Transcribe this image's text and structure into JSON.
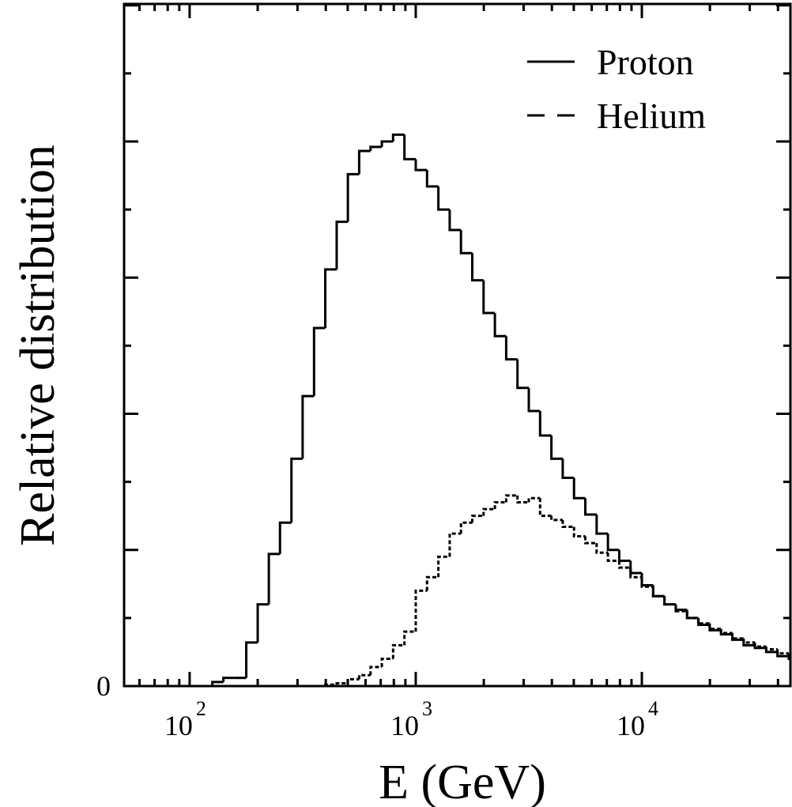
{
  "chart_data": {
    "type": "histogram",
    "x_label": "E (GeV)",
    "y_label": "Relative distribution",
    "log_x": true,
    "xlim": [
      51.3,
      45400
    ],
    "ylim": [
      0,
      5.01
    ],
    "xticks": [
      {
        "value": 100,
        "base": "10",
        "exponent": "2"
      },
      {
        "value": 1000,
        "base": "10",
        "exponent": "3"
      },
      {
        "value": 10000,
        "base": "10",
        "exponent": "4"
      }
    ],
    "xminor": [
      60,
      70,
      80,
      90,
      200,
      300,
      400,
      500,
      600,
      700,
      800,
      900,
      2000,
      3000,
      4000,
      5000,
      6000,
      7000,
      8000,
      9000,
      20000,
      30000,
      40000
    ],
    "yticks": [
      0
    ],
    "ytick_marks": [
      1,
      2,
      3,
      4,
      5
    ],
    "yminor": [
      0.5,
      1.5,
      2.5,
      3.5,
      4.5
    ],
    "legend": "upper right",
    "bins": [
      126,
      141,
      158,
      178,
      200,
      224,
      251,
      282,
      316,
      355,
      398,
      447,
      501,
      562,
      631,
      708,
      794,
      891,
      1000,
      1122,
      1259,
      1413,
      1585,
      1778,
      1995,
      2239,
      2512,
      2818,
      3162,
      3548,
      3981,
      4467,
      5012,
      5623,
      6310,
      7079,
      7943,
      8913,
      10000,
      11220,
      12589,
      14125,
      15849,
      17783,
      19953,
      22387,
      25119,
      28184,
      31623,
      35481,
      39811,
      44668,
      50119
    ],
    "series": [
      {
        "name": "Proton",
        "color": "#000000",
        "dashed": false,
        "values": [
          0.03,
          0.06,
          0.06,
          0.32,
          0.6,
          0.97,
          1.2,
          1.67,
          2.13,
          2.63,
          3.06,
          3.41,
          3.76,
          3.93,
          3.96,
          4.0,
          4.05,
          3.87,
          3.79,
          3.67,
          3.5,
          3.35,
          3.18,
          2.98,
          2.74,
          2.57,
          2.4,
          2.19,
          2.02,
          1.84,
          1.67,
          1.53,
          1.38,
          1.26,
          1.12,
          1.0,
          0.92,
          0.83,
          0.74,
          0.66,
          0.6,
          0.56,
          0.5,
          0.45,
          0.41,
          0.38,
          0.34,
          0.3,
          0.28,
          0.25,
          0.22,
          0.2
        ]
      },
      {
        "name": "Helium",
        "color": "#000000",
        "dashed": true,
        "values": [
          0,
          0,
          0,
          0,
          0,
          0,
          0,
          0,
          0,
          0,
          0.01,
          0.02,
          0.05,
          0.08,
          0.14,
          0.2,
          0.3,
          0.4,
          0.7,
          0.8,
          0.95,
          1.12,
          1.2,
          1.25,
          1.3,
          1.35,
          1.4,
          1.35,
          1.38,
          1.25,
          1.22,
          1.17,
          1.1,
          1.05,
          0.98,
          0.92,
          0.87,
          0.8,
          0.73,
          0.66,
          0.6,
          0.55,
          0.5,
          0.46,
          0.42,
          0.39,
          0.35,
          0.32,
          0.29,
          0.27,
          0.24,
          0.22
        ]
      }
    ]
  }
}
